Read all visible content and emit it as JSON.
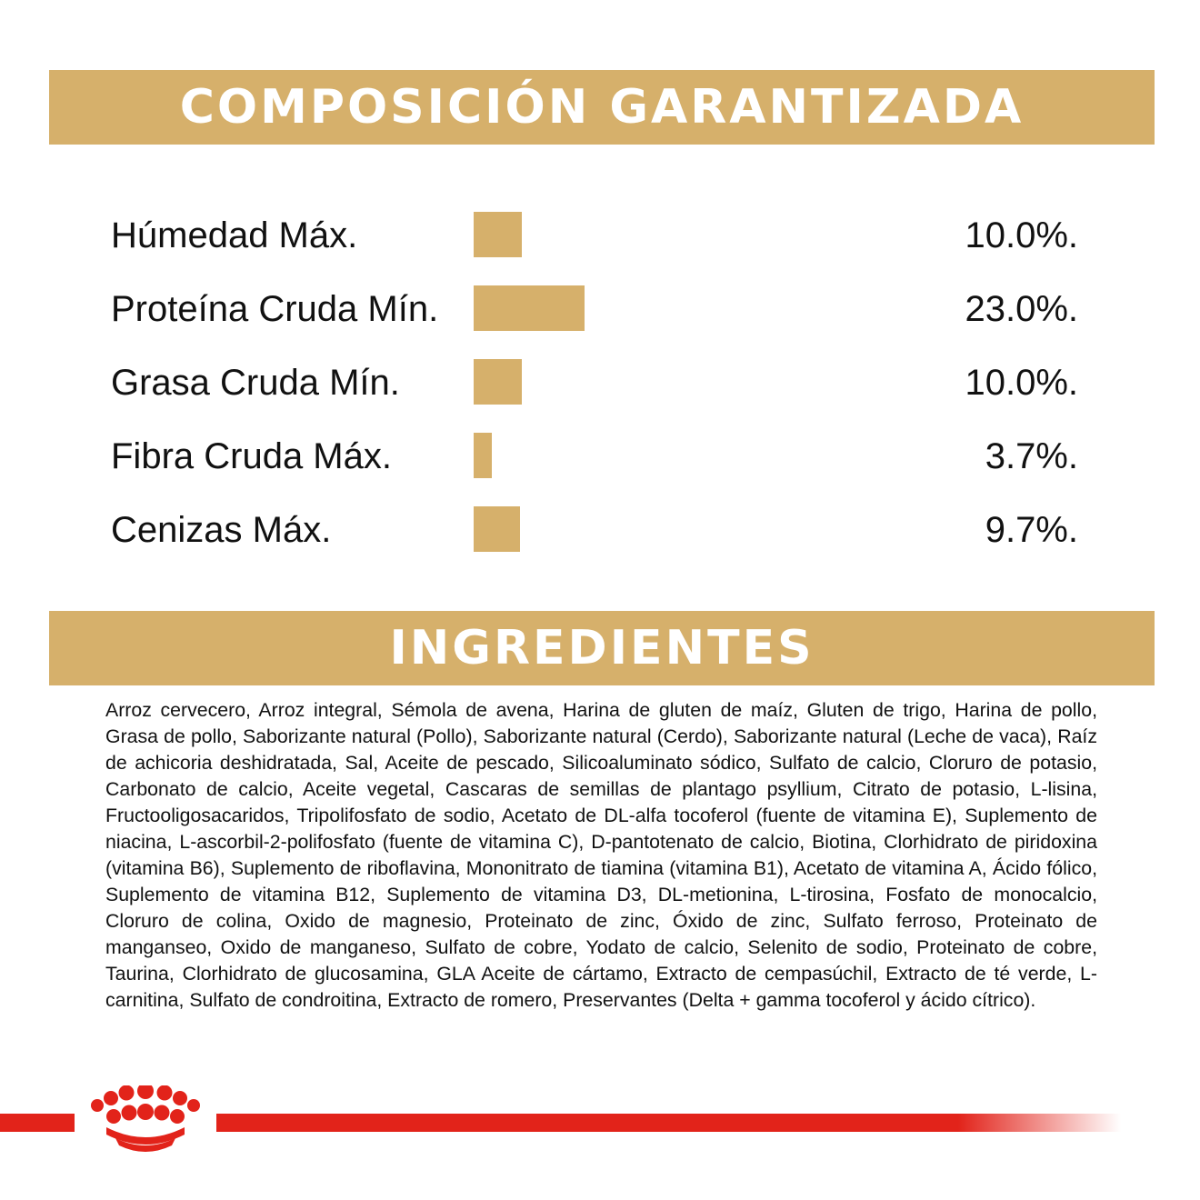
{
  "colors": {
    "accent": "#d6b06b",
    "brand_red": "#e2231a"
  },
  "composition_banner": {
    "title": "COMPOSICIÓN GARANTIZADA"
  },
  "ingredients_banner": {
    "title": "INGREDIENTES"
  },
  "chart_data": {
    "type": "bar",
    "orientation": "horizontal",
    "categories": [
      "Húmedad Máx.",
      "Proteína Cruda Mín.",
      "Grasa Cruda Mín.",
      "Fibra Cruda Máx.",
      "Cenizas Máx."
    ],
    "values": [
      10.0,
      23.0,
      10.0,
      3.7,
      9.7
    ],
    "value_labels": [
      "10.0%.",
      "23.0%.",
      "10.0%.",
      "3.7%.",
      "9.7%."
    ],
    "unit": "%",
    "grid": false,
    "color": "#d6b06b"
  },
  "ingredients_text": "Arroz cervecero, Arroz integral, Sémola de avena, Harina de gluten de maíz, Gluten de trigo, Harina de pollo, Grasa de pollo, Saborizante natural (Pollo), Saborizante natural (Cerdo), Saborizante natural (Leche de vaca), Raíz de achicoria deshidratada, Sal, Aceite de pescado, Silicoaluminato sódico, Sulfato de calcio, Cloruro de potasio, Carbonato de calcio, Aceite vegetal, Cascaras de semillas de plantago psyllium, Citrato de potasio, L-lisina, Fructooligosacaridos, Tripolifosfato de sodio, Acetato de DL-alfa tocoferol (fuente de vitamina E), Suplemento de niacina, L-ascorbil-2-polifosfato (fuente de vitamina C), D-pantotenato de calcio, Biotina, Clorhidrato de piridoxina (vitamina B6), Suplemento de riboflavina, Mononitrato de tiamina (vitamina B1), Acetato de vitamina A, Ácido fólico, Suplemento de vitamina B12, Suplemento de vitamina D3, DL-metionina, L-tirosina, Fosfato de monocalcio, Cloruro de colina, Oxido de magnesio, Proteinato de zinc, Óxido de zinc, Sulfato ferroso, Proteinato de manganseo, Oxido de manganeso, Sulfato de cobre, Yodato de calcio, Selenito de sodio, Proteinato de cobre, Taurina, Clorhidrato de glucosamina, GLA Aceite de cártamo, Extracto de cempasúchil, Extracto de té verde, L-carnitina, Sulfato de condroitina, Extracto de romero, Preservantes (Delta + gamma tocoferol y ácido cítrico).",
  "footer": {
    "logo_icon": "royal-canin-crown-icon"
  }
}
